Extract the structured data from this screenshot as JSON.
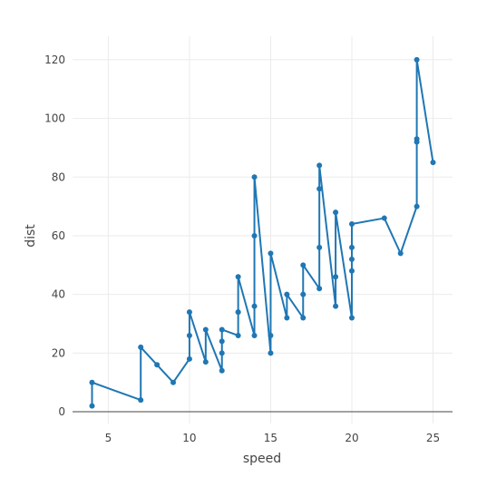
{
  "chart_data": {
    "type": "line",
    "title": "",
    "xlabel": "speed",
    "ylabel": "dist",
    "xlim": [
      2.8,
      26.2
    ],
    "ylim": [
      -4,
      128
    ],
    "xticks": [
      5,
      10,
      15,
      20,
      25
    ],
    "yticks": [
      0,
      20,
      40,
      60,
      80,
      100,
      120
    ],
    "grid": true,
    "markers": true,
    "color": "#1f77b4",
    "series": [
      {
        "x": [
          4,
          4,
          7,
          7,
          8,
          9,
          10,
          10,
          10,
          11,
          11,
          12,
          12,
          12,
          12,
          13,
          13,
          13,
          13,
          14,
          14,
          14,
          14,
          15,
          15,
          15,
          16,
          16,
          17,
          17,
          17,
          18,
          18,
          18,
          18,
          19,
          19,
          19,
          20,
          20,
          20,
          20,
          20,
          22,
          23,
          24,
          24,
          24,
          24,
          25
        ],
        "y": [
          2,
          10,
          4,
          22,
          16,
          10,
          18,
          26,
          34,
          17,
          28,
          14,
          20,
          24,
          28,
          26,
          34,
          34,
          46,
          26,
          36,
          60,
          80,
          20,
          26,
          54,
          32,
          40,
          32,
          40,
          50,
          42,
          56,
          76,
          84,
          36,
          46,
          68,
          32,
          48,
          52,
          56,
          64,
          66,
          54,
          70,
          92,
          93,
          120,
          85
        ]
      }
    ]
  }
}
